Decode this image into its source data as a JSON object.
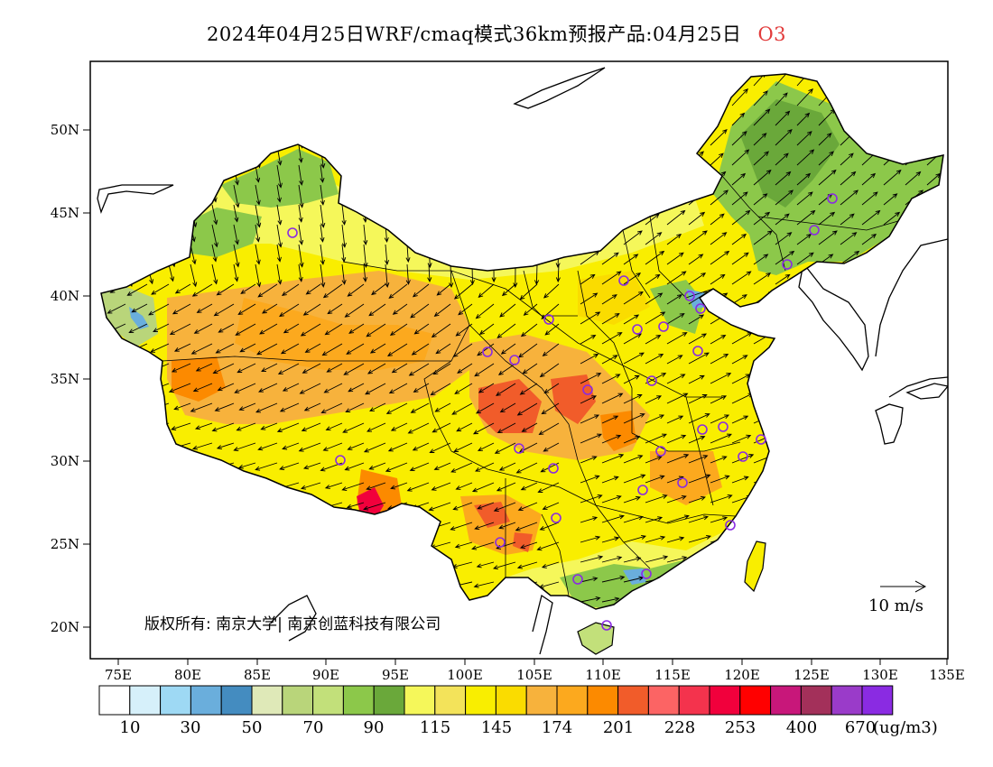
{
  "title": {
    "main": "2024年04月25日WRF/cmaq模式36km预报产品:04月25日",
    "pollutant": "O3"
  },
  "map": {
    "lat_ticks": [
      "50N",
      "45N",
      "40N",
      "35N",
      "30N",
      "25N",
      "20N"
    ],
    "lon_ticks": [
      "75E",
      "80E",
      "85E",
      "90E",
      "95E",
      "100E",
      "105E",
      "110E",
      "115E",
      "120E",
      "125E",
      "130E",
      "135E"
    ],
    "copyright": "版权所有: 南京大学| 南京创蓝科技有限公司",
    "wind_reference_label": "10 m/s"
  },
  "legend": {
    "colors": [
      "#ffffff",
      "#d6f0fa",
      "#9ed9f4",
      "#6aaedc",
      "#448cc0",
      "#dfe9b8",
      "#b9d57a",
      "#c2e07a",
      "#8cc84a",
      "#6aa83a",
      "#f5f75a",
      "#f3e35a",
      "#f9ee00",
      "#fadc00",
      "#f7b23c",
      "#fca91e",
      "#fc8a00",
      "#f15c2a",
      "#fc6464",
      "#f4334d",
      "#f1003c",
      "#ff0000",
      "#c8177a",
      "#a3305a",
      "#9a3bc9",
      "#8a2be2"
    ],
    "labels": [
      "10",
      "30",
      "50",
      "70",
      "90",
      "115",
      "145",
      "174",
      "201",
      "228",
      "253",
      "400",
      "670"
    ],
    "unit": "(ug/m3)"
  }
}
